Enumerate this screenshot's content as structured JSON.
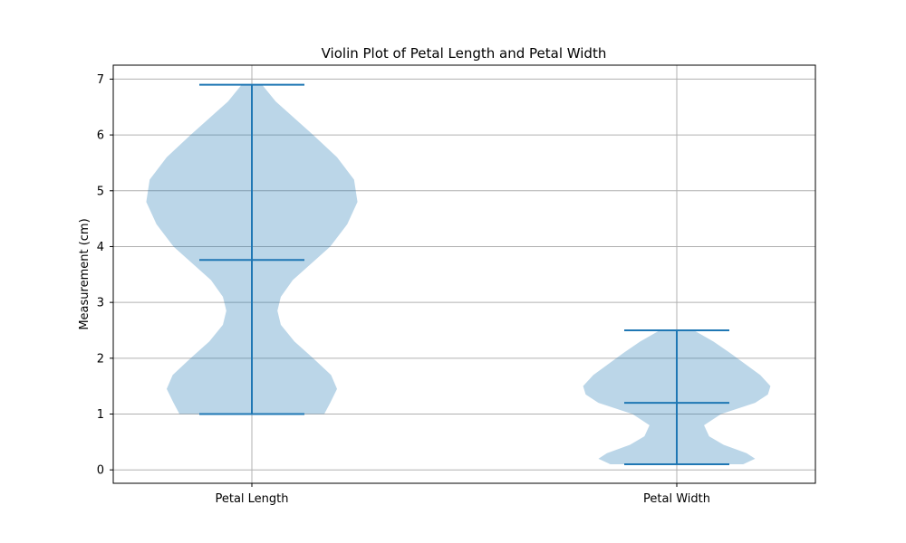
{
  "chart_data": {
    "type": "violin",
    "title": "Violin Plot of Petal Length and Petal Width",
    "xlabel": "",
    "ylabel": "Measurement (cm)",
    "ylim": [
      -0.24,
      7.25
    ],
    "yticks": [
      0,
      1,
      2,
      3,
      4,
      5,
      6,
      7
    ],
    "grid": true,
    "colors": {
      "body": "#1f77b4",
      "lines": "#1f77b4",
      "grid": "#b0b0b0"
    },
    "series": [
      {
        "category": "Petal Length",
        "min": 1.0,
        "max": 6.9,
        "mean": 3.76,
        "density": [
          [
            1.0,
            0.85
          ],
          [
            1.2,
            0.92
          ],
          [
            1.45,
            1.0
          ],
          [
            1.7,
            0.93
          ],
          [
            2.0,
            0.72
          ],
          [
            2.3,
            0.5
          ],
          [
            2.6,
            0.34
          ],
          [
            2.85,
            0.3
          ],
          [
            3.1,
            0.34
          ],
          [
            3.4,
            0.48
          ],
          [
            3.7,
            0.7
          ],
          [
            4.0,
            0.92
          ],
          [
            4.4,
            1.12
          ],
          [
            4.8,
            1.24
          ],
          [
            5.2,
            1.2
          ],
          [
            5.6,
            1.0
          ],
          [
            6.0,
            0.72
          ],
          [
            6.3,
            0.5
          ],
          [
            6.6,
            0.28
          ],
          [
            6.9,
            0.12
          ]
        ]
      },
      {
        "category": "Petal Width",
        "min": 0.1,
        "max": 2.5,
        "mean": 1.2,
        "density": [
          [
            0.1,
            0.78
          ],
          [
            0.2,
            0.92
          ],
          [
            0.3,
            0.82
          ],
          [
            0.45,
            0.55
          ],
          [
            0.6,
            0.38
          ],
          [
            0.8,
            0.32
          ],
          [
            1.0,
            0.52
          ],
          [
            1.2,
            0.92
          ],
          [
            1.35,
            1.07
          ],
          [
            1.5,
            1.1
          ],
          [
            1.7,
            0.98
          ],
          [
            1.9,
            0.8
          ],
          [
            2.1,
            0.62
          ],
          [
            2.3,
            0.43
          ],
          [
            2.5,
            0.2
          ]
        ]
      }
    ]
  }
}
